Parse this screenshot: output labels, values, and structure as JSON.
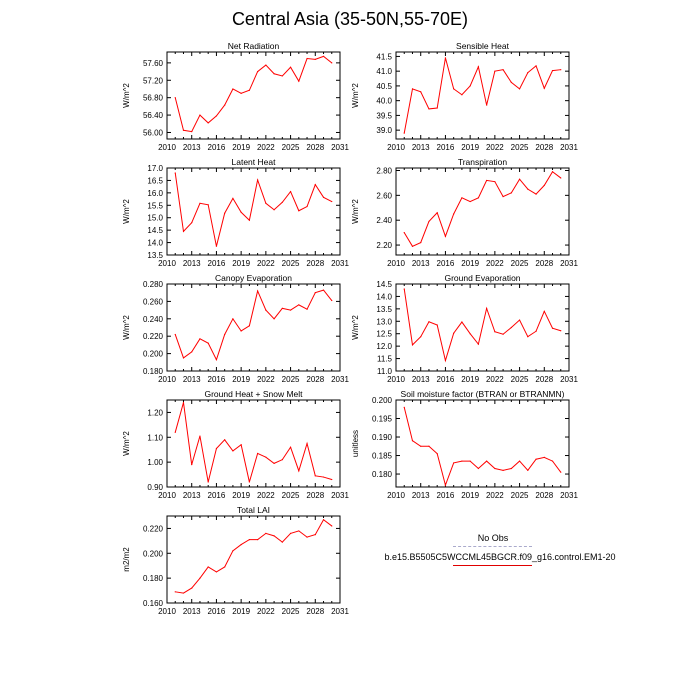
{
  "title": "Central Asia (35-50N,55-70E)",
  "colors": {
    "line": "#ff0000",
    "axis": "#000000",
    "legend_obs": "#aaaacc",
    "legend_model": "#e00000"
  },
  "legend": {
    "entries": [
      {
        "label": "No Obs",
        "style": "dashed",
        "color": "#aaaacc"
      },
      {
        "label": "b.e15.B5505C5WCCML45BGCR.f09_g16.control.EM1-20",
        "style": "solid",
        "color": "#e00000"
      }
    ]
  },
  "chart_data": [
    {
      "type": "line",
      "title": "Net Radiation",
      "ylabel": "W/m^2",
      "xlim": [
        2010,
        2031
      ],
      "ylim": [
        55.85,
        57.85
      ],
      "xticks": [
        "2010",
        "2013",
        "2016",
        "2019",
        "2022",
        "2025",
        "2028",
        "2031"
      ],
      "yticks": [
        "56.00",
        "56.40",
        "56.80",
        "57.20",
        "57.60"
      ],
      "x": [
        2011,
        2012,
        2013,
        2014,
        2015,
        2016,
        2017,
        2018,
        2019,
        2020,
        2021,
        2022,
        2023,
        2024,
        2025,
        2026,
        2027,
        2028,
        2029,
        2030
      ],
      "series": [
        {
          "values": [
            56.8,
            56.05,
            56.02,
            56.4,
            56.22,
            56.38,
            56.63,
            57.0,
            56.9,
            56.97,
            57.4,
            57.55,
            57.35,
            57.3,
            57.5,
            57.18,
            57.7,
            57.68,
            57.75,
            57.6
          ]
        }
      ]
    },
    {
      "type": "line",
      "title": "Sensible Heat",
      "ylabel": "W/m^2",
      "xlim": [
        2010,
        2031
      ],
      "ylim": [
        38.7,
        41.65
      ],
      "xticks": [
        "2010",
        "2013",
        "2016",
        "2019",
        "2022",
        "2025",
        "2028",
        "2031"
      ],
      "yticks": [
        "39.0",
        "39.5",
        "40.0",
        "40.5",
        "41.0",
        "41.5"
      ],
      "x": [
        2011,
        2012,
        2013,
        2014,
        2015,
        2016,
        2017,
        2018,
        2019,
        2020,
        2021,
        2022,
        2023,
        2024,
        2025,
        2026,
        2027,
        2028,
        2029,
        2030
      ],
      "series": [
        {
          "values": [
            38.9,
            40.4,
            40.3,
            39.72,
            39.75,
            41.45,
            40.4,
            40.2,
            40.5,
            41.15,
            39.85,
            41.0,
            41.05,
            40.62,
            40.4,
            40.95,
            41.18,
            40.42,
            41.02,
            41.05
          ]
        }
      ]
    },
    {
      "type": "line",
      "title": "Latent Heat",
      "ylabel": "W/m^2",
      "xlim": [
        2010,
        2031
      ],
      "ylim": [
        13.5,
        17.0
      ],
      "xticks": [
        "2010",
        "2013",
        "2016",
        "2019",
        "2022",
        "2025",
        "2028",
        "2031"
      ],
      "yticks": [
        "13.5",
        "14.0",
        "14.5",
        "15.0",
        "15.5",
        "16.0",
        "16.5",
        "17.0"
      ],
      "x": [
        2011,
        2012,
        2013,
        2014,
        2015,
        2016,
        2017,
        2018,
        2019,
        2020,
        2021,
        2022,
        2023,
        2024,
        2025,
        2026,
        2027,
        2028,
        2029,
        2030
      ],
      "series": [
        {
          "values": [
            16.8,
            14.45,
            14.8,
            15.58,
            15.52,
            13.85,
            15.18,
            15.78,
            15.22,
            14.9,
            16.52,
            15.58,
            15.32,
            15.62,
            16.05,
            15.28,
            15.45,
            16.33,
            15.82,
            15.65
          ]
        }
      ]
    },
    {
      "type": "line",
      "title": "Transpiration",
      "ylabel": "W/m^2",
      "xlim": [
        2010,
        2031
      ],
      "ylim": [
        2.12,
        2.82
      ],
      "xticks": [
        "2010",
        "2013",
        "2016",
        "2019",
        "2022",
        "2025",
        "2028",
        "2031"
      ],
      "yticks": [
        "2.20",
        "2.40",
        "2.60",
        "2.80"
      ],
      "x": [
        2011,
        2012,
        2013,
        2014,
        2015,
        2016,
        2017,
        2018,
        2019,
        2020,
        2021,
        2022,
        2023,
        2024,
        2025,
        2026,
        2027,
        2028,
        2029,
        2030
      ],
      "series": [
        {
          "values": [
            2.3,
            2.19,
            2.22,
            2.39,
            2.46,
            2.27,
            2.45,
            2.58,
            2.55,
            2.58,
            2.72,
            2.71,
            2.59,
            2.62,
            2.73,
            2.65,
            2.61,
            2.68,
            2.79,
            2.74
          ]
        }
      ]
    },
    {
      "type": "line",
      "title": "Canopy Evaporation",
      "ylabel": "W/m^2",
      "xlim": [
        2010,
        2031
      ],
      "ylim": [
        0.18,
        0.28
      ],
      "xticks": [
        "2010",
        "2013",
        "2016",
        "2019",
        "2022",
        "2025",
        "2028",
        "2031"
      ],
      "yticks": [
        "0.180",
        "0.200",
        "0.220",
        "0.240",
        "0.260",
        "0.280"
      ],
      "x": [
        2011,
        2012,
        2013,
        2014,
        2015,
        2016,
        2017,
        2018,
        2019,
        2020,
        2021,
        2022,
        2023,
        2024,
        2025,
        2026,
        2027,
        2028,
        2029,
        2030
      ],
      "series": [
        {
          "values": [
            0.222,
            0.195,
            0.202,
            0.217,
            0.212,
            0.193,
            0.222,
            0.24,
            0.226,
            0.232,
            0.272,
            0.25,
            0.24,
            0.252,
            0.25,
            0.256,
            0.251,
            0.27,
            0.273,
            0.261
          ]
        }
      ]
    },
    {
      "type": "line",
      "title": "Ground Evaporation",
      "ylabel": "W/m^2",
      "xlim": [
        2010,
        2031
      ],
      "ylim": [
        11.0,
        14.5
      ],
      "xticks": [
        "2010",
        "2013",
        "2016",
        "2019",
        "2022",
        "2025",
        "2028",
        "2031"
      ],
      "yticks": [
        "11.0",
        "11.5",
        "12.0",
        "12.5",
        "13.0",
        "13.5",
        "14.0",
        "14.5"
      ],
      "x": [
        2011,
        2012,
        2013,
        2014,
        2015,
        2016,
        2017,
        2018,
        2019,
        2020,
        2021,
        2022,
        2023,
        2024,
        2025,
        2026,
        2027,
        2028,
        2029,
        2030
      ],
      "series": [
        {
          "values": [
            14.3,
            12.05,
            12.38,
            12.98,
            12.85,
            11.42,
            12.52,
            12.97,
            12.5,
            12.08,
            13.52,
            12.58,
            12.48,
            12.75,
            13.05,
            12.38,
            12.6,
            13.4,
            12.72,
            12.62
          ]
        }
      ]
    },
    {
      "type": "line",
      "title": "Ground Heat + Snow Melt",
      "ylabel": "W/m^2",
      "xlim": [
        2010,
        2031
      ],
      "ylim": [
        0.9,
        1.25
      ],
      "xticks": [
        "2010",
        "2013",
        "2016",
        "2019",
        "2022",
        "2025",
        "2028",
        "2031"
      ],
      "yticks": [
        "0.90",
        "1.00",
        "1.10",
        "1.20"
      ],
      "x": [
        2011,
        2012,
        2013,
        2014,
        2015,
        2016,
        2017,
        2018,
        2019,
        2020,
        2021,
        2022,
        2023,
        2024,
        2025,
        2026,
        2027,
        2028,
        2029,
        2030
      ],
      "series": [
        {
          "values": [
            1.12,
            1.24,
            0.99,
            1.105,
            0.92,
            1.055,
            1.09,
            1.045,
            1.07,
            0.92,
            1.035,
            1.02,
            0.995,
            1.01,
            1.06,
            0.965,
            1.075,
            0.945,
            0.94,
            0.93
          ]
        }
      ]
    },
    {
      "type": "line",
      "title": "Soil moisture factor (BTRAN or BTRANMN)",
      "ylabel": "unitless",
      "xlim": [
        2010,
        2031
      ],
      "ylim": [
        0.1765,
        0.2
      ],
      "xticks": [
        "2010",
        "2013",
        "2016",
        "2019",
        "2022",
        "2025",
        "2028",
        "2031"
      ],
      "yticks": [
        "0.180",
        "0.185",
        "0.190",
        "0.195",
        "0.200"
      ],
      "x": [
        2011,
        2012,
        2013,
        2014,
        2015,
        2016,
        2017,
        2018,
        2019,
        2020,
        2021,
        2022,
        2023,
        2024,
        2025,
        2026,
        2027,
        2028,
        2029,
        2030
      ],
      "series": [
        {
          "values": [
            0.198,
            0.189,
            0.1875,
            0.1875,
            0.1855,
            0.177,
            0.183,
            0.1835,
            0.1835,
            0.1815,
            0.1835,
            0.1815,
            0.181,
            0.1815,
            0.1835,
            0.181,
            0.184,
            0.1845,
            0.1835,
            0.1805
          ]
        }
      ]
    },
    {
      "type": "line",
      "title": "Total LAI",
      "ylabel": "m2/m2",
      "xlim": [
        2010,
        2031
      ],
      "ylim": [
        0.16,
        0.23
      ],
      "xticks": [
        "2010",
        "2013",
        "2016",
        "2019",
        "2022",
        "2025",
        "2028",
        "2031"
      ],
      "yticks": [
        "0.160",
        "0.180",
        "0.200",
        "0.220"
      ],
      "x": [
        2011,
        2012,
        2013,
        2014,
        2015,
        2016,
        2017,
        2018,
        2019,
        2020,
        2021,
        2022,
        2023,
        2024,
        2025,
        2026,
        2027,
        2028,
        2029,
        2030
      ],
      "series": [
        {
          "values": [
            0.169,
            0.168,
            0.172,
            0.18,
            0.189,
            0.185,
            0.189,
            0.202,
            0.207,
            0.211,
            0.211,
            0.216,
            0.214,
            0.209,
            0.216,
            0.218,
            0.213,
            0.215,
            0.227,
            0.222
          ]
        }
      ]
    }
  ]
}
